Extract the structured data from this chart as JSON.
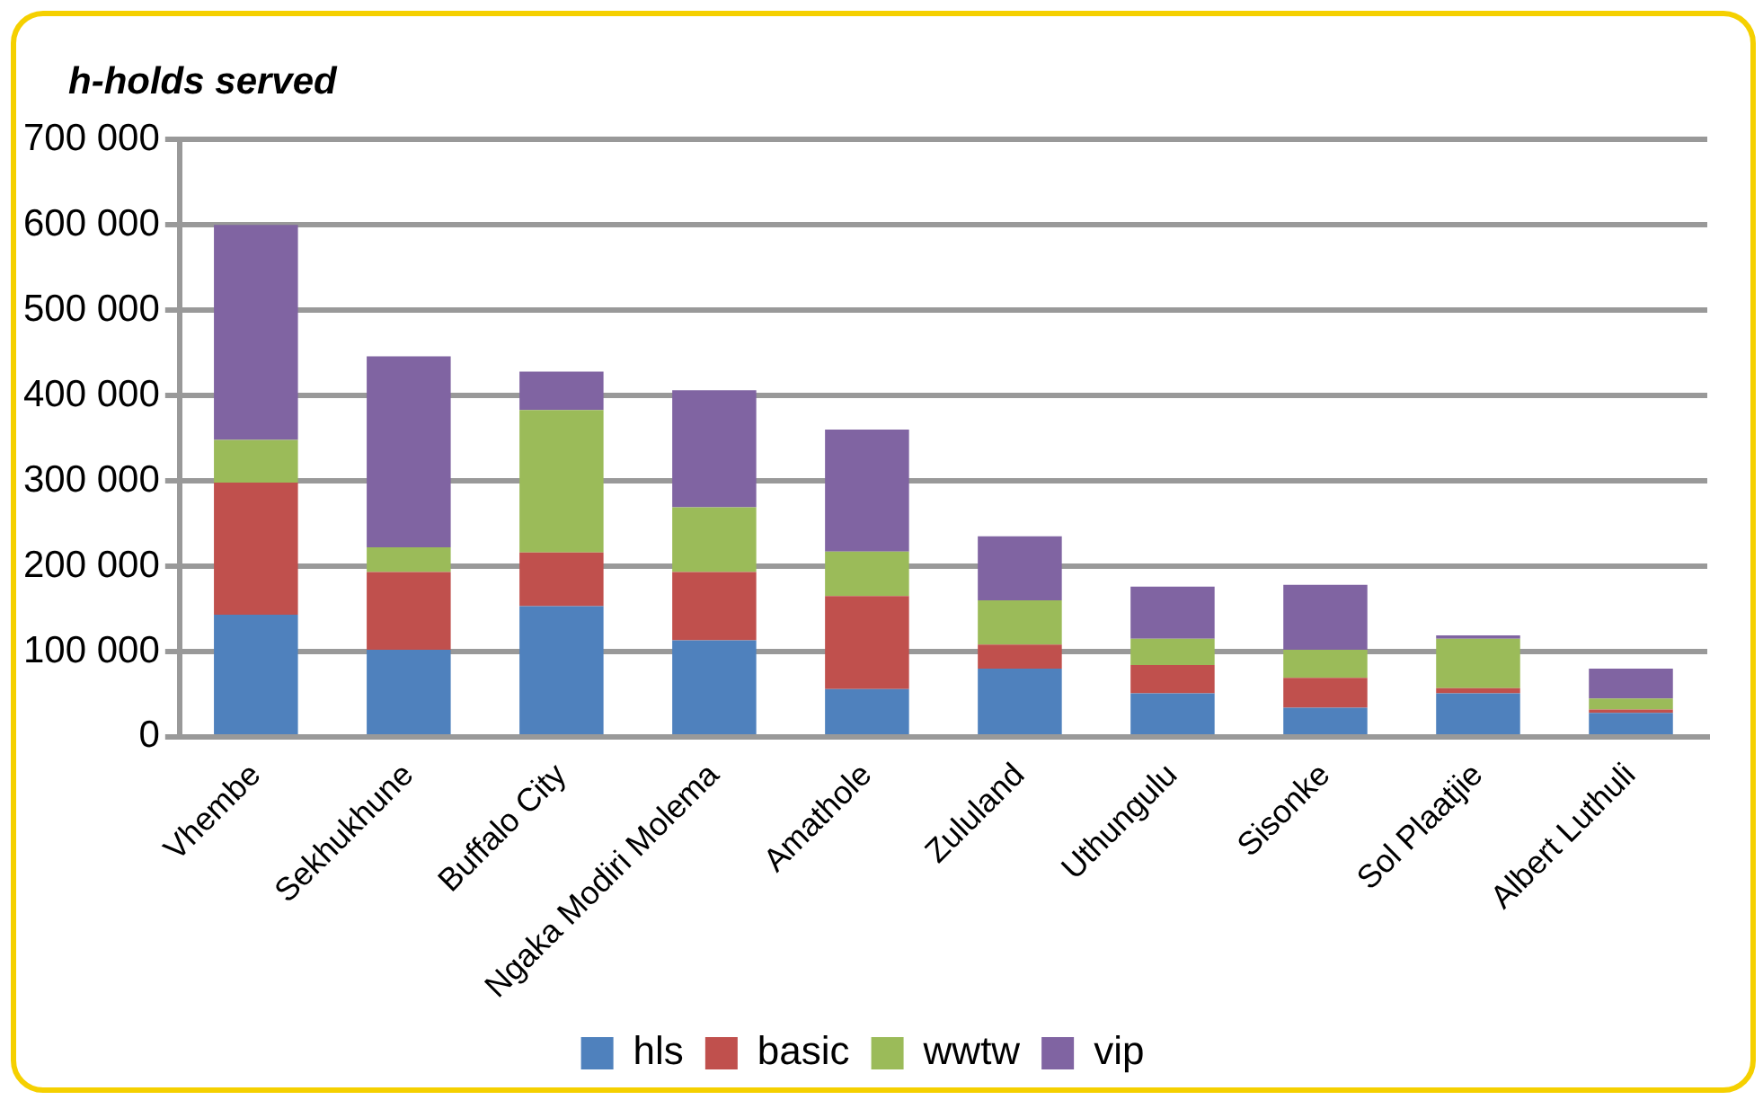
{
  "chart_data": {
    "type": "bar",
    "stacked": true,
    "title": "h-holds served",
    "categories": [
      "Vhembe",
      "Sekhukhune",
      "Buffalo City",
      "Ngaka Modiri Molema",
      "Amathole",
      "Zululand",
      "Uthungulu",
      "Sisonke",
      "Sol Plaatjie",
      "Albert Luthuli"
    ],
    "series": [
      {
        "name": "hls",
        "color": "#4f81bd",
        "values": [
          143000,
          102000,
          153000,
          113000,
          56000,
          80000,
          51000,
          34000,
          51000,
          28000
        ]
      },
      {
        "name": "basic",
        "color": "#c0504d",
        "values": [
          155000,
          91000,
          63000,
          80000,
          109000,
          28000,
          33000,
          35000,
          6000,
          4000
        ]
      },
      {
        "name": "wwtw",
        "color": "#9bbb59",
        "values": [
          50000,
          29000,
          167000,
          76000,
          52000,
          52000,
          31000,
          33000,
          58000,
          13000
        ]
      },
      {
        "name": "vip",
        "color": "#8064a2",
        "values": [
          252000,
          224000,
          45000,
          137000,
          143000,
          75000,
          61000,
          76000,
          4000,
          35000
        ]
      }
    ],
    "ylim": [
      0,
      700000
    ],
    "yticks": [
      {
        "value": 0,
        "label": "0"
      },
      {
        "value": 100000,
        "label": "100 000"
      },
      {
        "value": 200000,
        "label": "200 000"
      },
      {
        "value": 300000,
        "label": "300 000"
      },
      {
        "value": 400000,
        "label": "400 000"
      },
      {
        "value": 500000,
        "label": "500 000"
      },
      {
        "value": 600000,
        "label": "600 000"
      },
      {
        "value": 700000,
        "label": "700 000"
      }
    ],
    "grid": "y",
    "legend": "bottom"
  }
}
